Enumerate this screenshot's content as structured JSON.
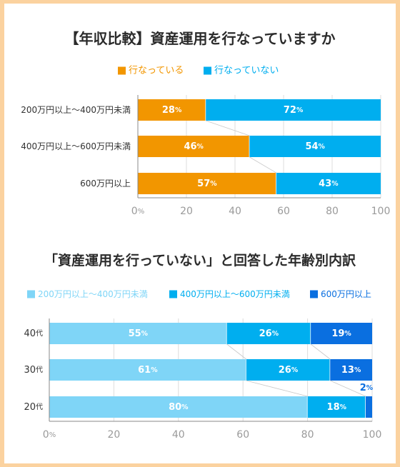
{
  "chart_data": [
    {
      "type": "bar",
      "orientation": "horizontal",
      "stacked": true,
      "title": "【年収比較】資産運用を行なっていますか",
      "categories": [
        "200万円以上〜400万円未満",
        "400万円以上〜600万円未満",
        "600万円以上"
      ],
      "series": [
        {
          "name": "行なっている",
          "values": [
            28,
            46,
            57
          ],
          "color": "#f29600",
          "labels": [
            "28",
            "46",
            "57"
          ]
        },
        {
          "name": "行なっていない",
          "values": [
            72,
            54,
            43
          ],
          "color": "#00aeef",
          "labels": [
            "72",
            "54",
            "43"
          ]
        }
      ],
      "xlim": [
        0,
        100
      ],
      "xticks": [
        0,
        20,
        40,
        60,
        80,
        100
      ],
      "xtick_labels": [
        "0%",
        "20",
        "40",
        "60",
        "80",
        "100"
      ],
      "value_unit": "%",
      "legend": "top"
    },
    {
      "type": "bar",
      "orientation": "horizontal",
      "stacked": true,
      "title": "「資産運用を行っていない」と回答した年齢別内訳",
      "categories": [
        "40代",
        "30代",
        "20代"
      ],
      "series": [
        {
          "name": "200万円以上〜400万円未満",
          "values": [
            55,
            61,
            80
          ],
          "color": "#7fd5f7",
          "labels": [
            "55",
            "61",
            "80"
          ]
        },
        {
          "name": "400万円以上〜600万円未満",
          "values": [
            26,
            26,
            18
          ],
          "color": "#00aeef",
          "labels": [
            "26",
            "26",
            "18"
          ]
        },
        {
          "name": "600万円以上",
          "values": [
            19,
            13,
            2
          ],
          "color": "#0a6fe0",
          "labels": [
            "19",
            "13",
            "2"
          ]
        }
      ],
      "xlim": [
        0,
        100
      ],
      "xticks": [
        0,
        20,
        40,
        60,
        80,
        100
      ],
      "xtick_labels": [
        "0%",
        "20",
        "40",
        "60",
        "80",
        "100"
      ],
      "value_unit": "%",
      "legend": "top"
    }
  ]
}
